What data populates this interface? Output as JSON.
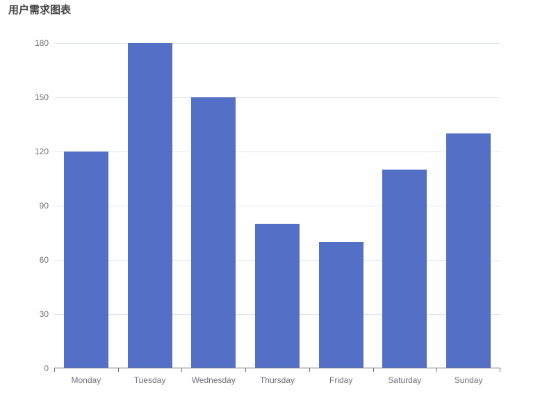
{
  "chart_data": {
    "type": "bar",
    "title": "用户需求图表",
    "categories": [
      "Monday",
      "Tuesday",
      "Wednesday",
      "Thursday",
      "Friday",
      "Saturday",
      "Sunday"
    ],
    "values": [
      120,
      180,
      150,
      80,
      70,
      110,
      130
    ],
    "series_count": 1,
    "xlabel": "",
    "ylabel": "",
    "ylim": [
      0,
      180
    ],
    "yticks": [
      0,
      30,
      60,
      90,
      120,
      150,
      180
    ],
    "grid": "horizontal-lines-on",
    "legend": "none",
    "colors": {
      "bar": "#5470c6",
      "grid_line": "#e0e6f1",
      "axis_line": "#6e7079",
      "tick_label": "#6e7079",
      "title": "#464646",
      "background": "#ffffff"
    }
  }
}
